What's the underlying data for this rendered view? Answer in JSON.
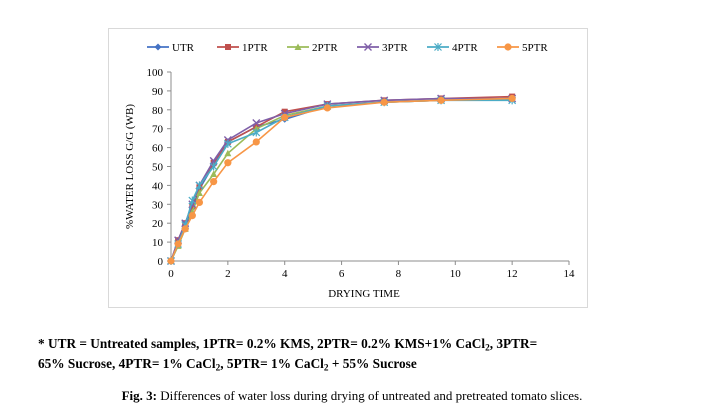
{
  "chart_data": {
    "type": "line",
    "title": "",
    "xlabel": "DRYING TIME",
    "ylabel": "%WATER LOSS G/G (WB)",
    "xlim": [
      0,
      14
    ],
    "ylim": [
      0,
      100
    ],
    "xticks": [
      "0",
      "2",
      "4",
      "6",
      "8",
      "10",
      "12",
      "14"
    ],
    "yticks": [
      "0",
      "10",
      "20",
      "30",
      "40",
      "50",
      "60",
      "70",
      "80",
      "90",
      "100"
    ],
    "grid": false,
    "legend_position": "top",
    "series": [
      {
        "name": "UTR",
        "color": "#4472c4",
        "marker": "diamond",
        "x": [
          0,
          0.25,
          0.5,
          0.75,
          1,
          1.5,
          2,
          3,
          4,
          5.5,
          7.5,
          9.5,
          12
        ],
        "y": [
          0,
          10,
          19,
          28,
          38,
          51,
          63,
          71,
          75,
          82,
          84,
          85,
          86
        ]
      },
      {
        "name": "1PTR",
        "color": "#c0504d",
        "marker": "square",
        "x": [
          0,
          0.25,
          0.5,
          0.75,
          1,
          1.5,
          2,
          3,
          4,
          5.5,
          7.5,
          9.5,
          12
        ],
        "y": [
          0,
          11,
          20,
          29,
          39,
          52,
          63,
          71,
          79,
          83,
          85,
          86,
          87
        ]
      },
      {
        "name": "2PTR",
        "color": "#9bbb59",
        "marker": "triangle",
        "x": [
          0,
          0.25,
          0.5,
          0.75,
          1,
          1.5,
          2,
          3,
          4,
          5.5,
          7.5,
          9.5,
          12
        ],
        "y": [
          0,
          8,
          17,
          26,
          36,
          46,
          57,
          70,
          77,
          82,
          84,
          85,
          86
        ]
      },
      {
        "name": "3PTR",
        "color": "#7f5fa8",
        "marker": "x",
        "x": [
          0,
          0.25,
          0.5,
          0.75,
          1,
          1.5,
          2,
          3,
          4,
          5.5,
          7.5,
          9.5,
          12
        ],
        "y": [
          0,
          11,
          20,
          30,
          40,
          53,
          64,
          73,
          78,
          83,
          85,
          86,
          86
        ]
      },
      {
        "name": "4PTR",
        "color": "#4bacc6",
        "marker": "star",
        "x": [
          0,
          0.25,
          0.5,
          0.75,
          1,
          1.5,
          2,
          3,
          4,
          5.5,
          7.5,
          9.5,
          12
        ],
        "y": [
          0,
          9,
          19,
          32,
          40,
          50,
          62,
          68,
          76,
          82,
          84,
          85,
          85
        ]
      },
      {
        "name": "5PTR",
        "color": "#f79646",
        "marker": "circle",
        "x": [
          0,
          0.25,
          0.5,
          0.75,
          1,
          1.5,
          2,
          3,
          4,
          5.5,
          7.5,
          9.5,
          12
        ],
        "y": [
          0,
          9,
          17,
          24,
          31,
          42,
          52,
          63,
          76,
          81,
          84,
          85,
          86
        ]
      }
    ]
  },
  "footnote": {
    "l1a": "* UTR = Untreated samples, 1PTR= 0.2% KMS, 2PTR= 0.2% KMS+1% CaCl",
    "l1b": ", 3PTR=",
    "l2a": "65% Sucrose, 4PTR= 1% CaCl",
    "l2b": ", 5PTR= 1% CaCl",
    "l2c": " + 55% Sucrose",
    "sub": "2"
  },
  "caption": {
    "label": "Fig. 3:",
    "text": " Differences of water loss during drying of untreated and pretreated tomato slices."
  }
}
